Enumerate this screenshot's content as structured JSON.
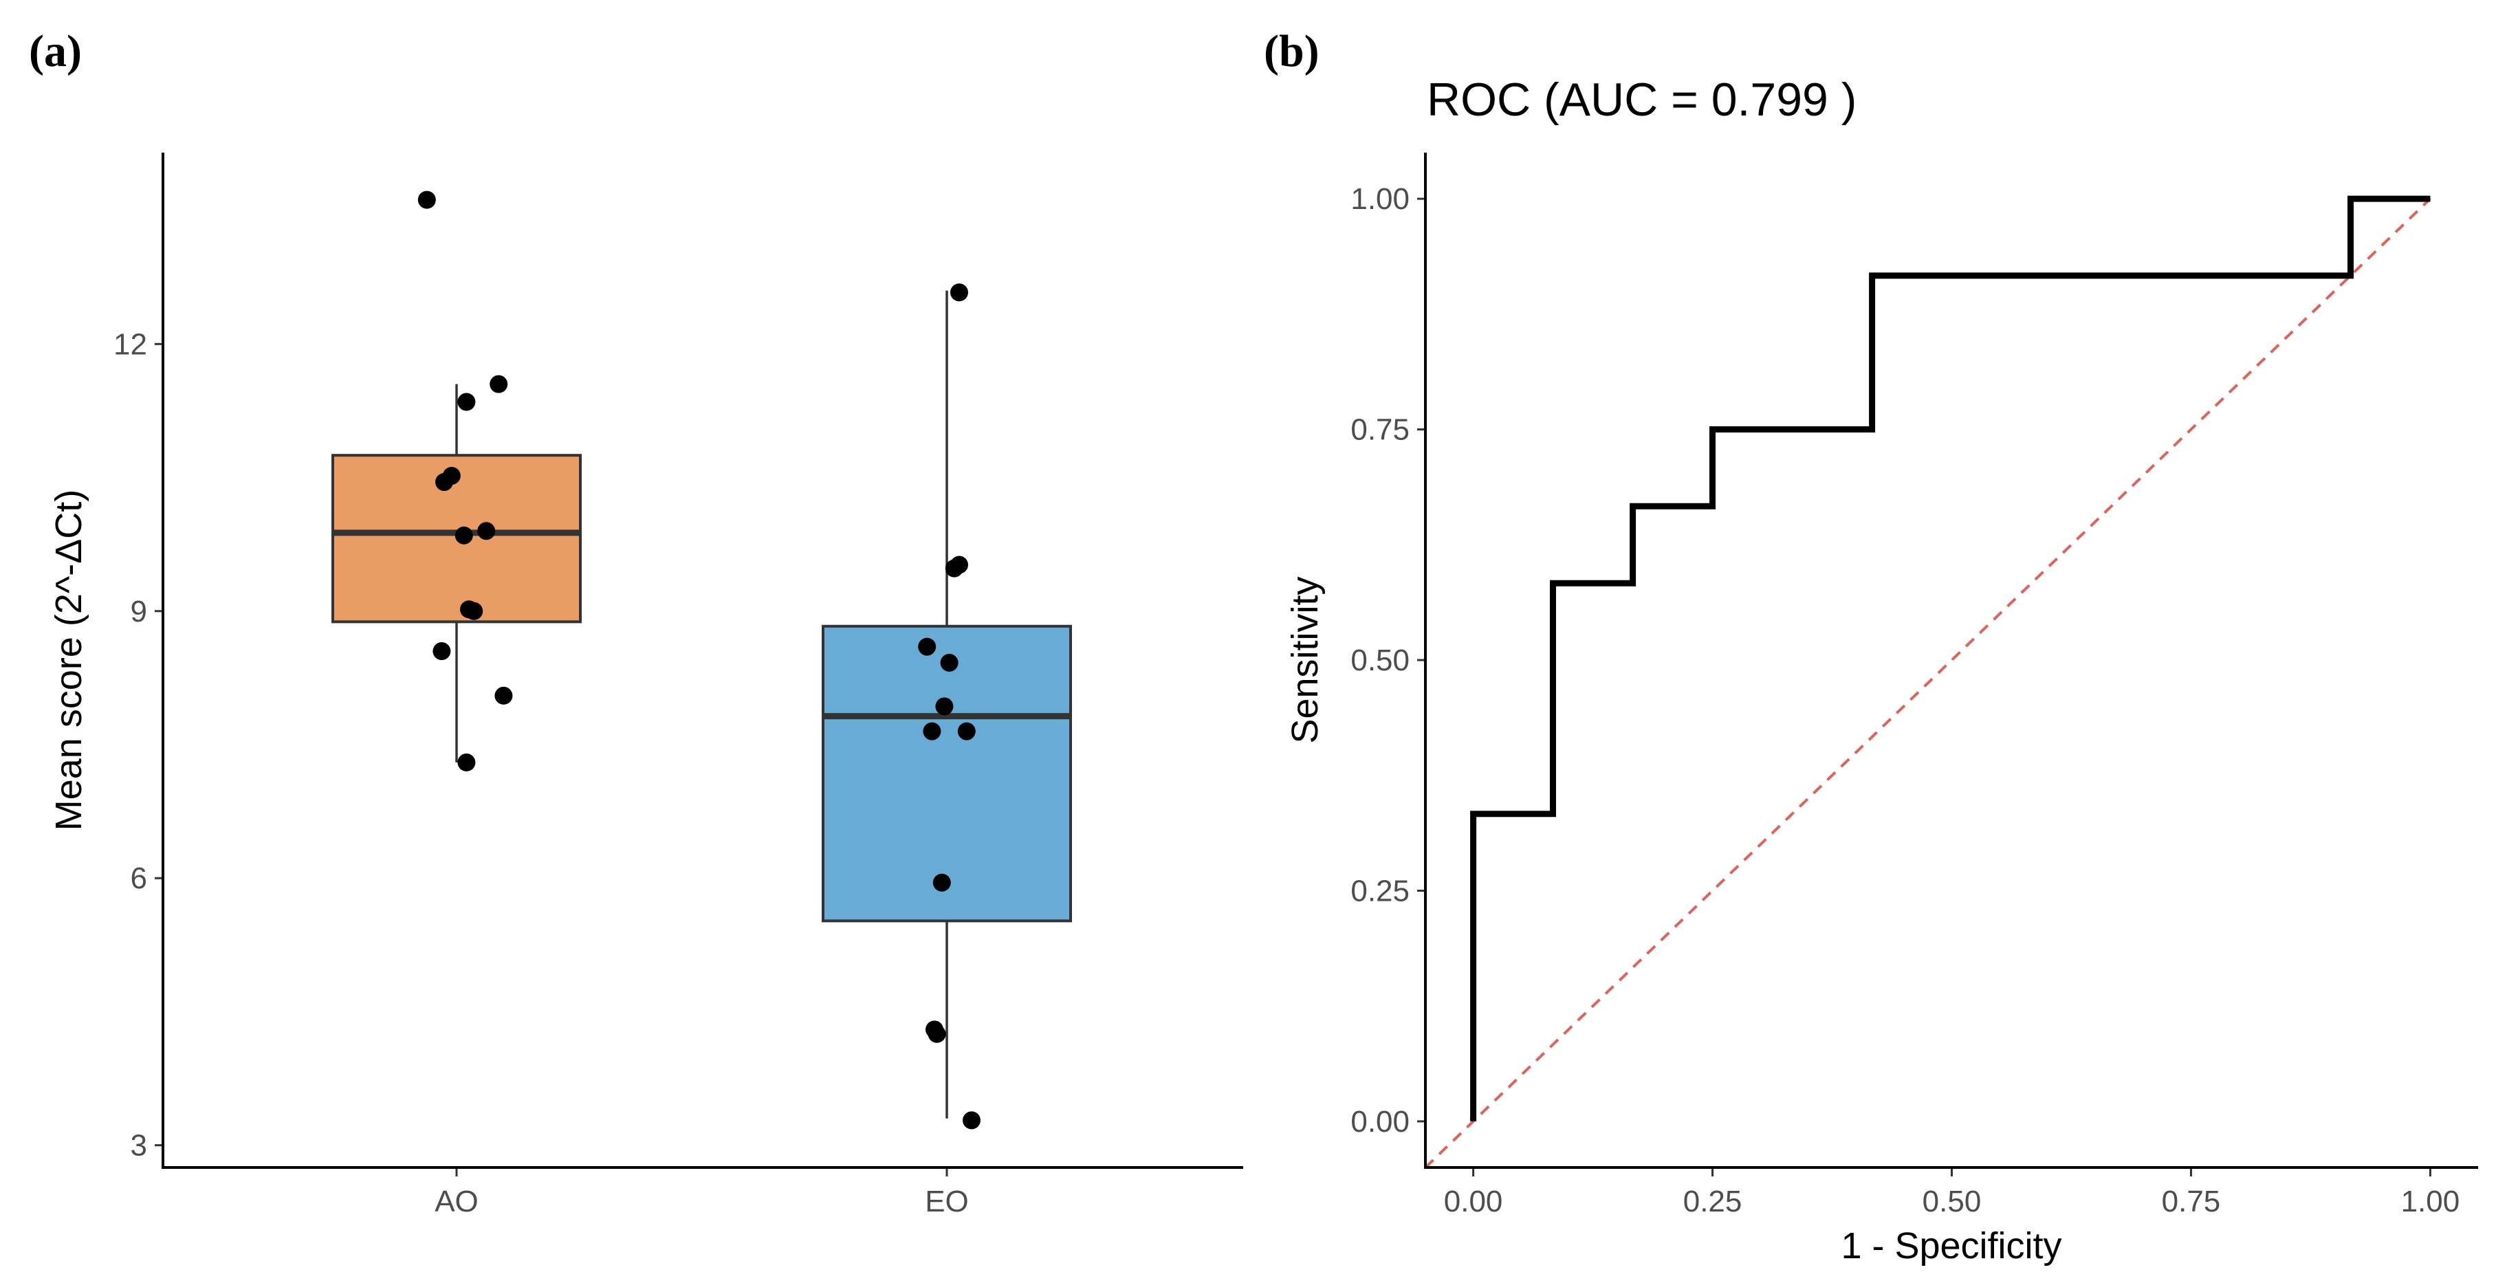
{
  "panels": {
    "a_label": "(a)",
    "b_label": "(b)"
  },
  "colors": {
    "ao_fill": "#E99D65",
    "eo_fill": "#68ABD4",
    "point": "#000000",
    "diagonal": "#D9655B",
    "roc": "#000000"
  },
  "chart_data": [
    {
      "type": "box",
      "title": "",
      "xlabel": "",
      "ylabel": "Mean score (2^-ΔCt)",
      "ylim": [
        2.75,
        14.15
      ],
      "yticks": [
        3,
        6,
        9,
        12
      ],
      "ytick_labels": [
        "3",
        "6",
        "9",
        "12"
      ],
      "categories": [
        "AO",
        "EO"
      ],
      "boxes": [
        {
          "name": "AO",
          "q1": 8.88,
          "median": 9.88,
          "q3": 10.75,
          "whisker_low": 7.3,
          "whisker_high": 11.55,
          "points": [
            [
              -0.12,
              13.62
            ],
            [
              0.17,
              11.55
            ],
            [
              0.04,
              11.35
            ],
            [
              -0.02,
              10.52
            ],
            [
              -0.05,
              10.45
            ],
            [
              0.12,
              9.9
            ],
            [
              0.03,
              9.85
            ],
            [
              0.07,
              9.0
            ],
            [
              0.05,
              9.02
            ],
            [
              -0.06,
              8.55
            ],
            [
              0.19,
              8.05
            ],
            [
              0.04,
              7.3
            ]
          ]
        },
        {
          "name": "EO",
          "q1": 5.52,
          "median": 7.82,
          "q3": 8.83,
          "whisker_low": 3.3,
          "whisker_high": 12.6,
          "points": [
            [
              0.05,
              12.58
            ],
            [
              0.05,
              9.52
            ],
            [
              0.03,
              9.48
            ],
            [
              -0.08,
              8.6
            ],
            [
              0.01,
              8.42
            ],
            [
              -0.01,
              7.93
            ],
            [
              0.08,
              7.65
            ],
            [
              -0.06,
              7.65
            ],
            [
              -0.02,
              5.95
            ],
            [
              -0.05,
              4.3
            ],
            [
              -0.04,
              4.25
            ],
            [
              0.1,
              3.28
            ]
          ]
        }
      ]
    },
    {
      "type": "line",
      "title": "ROC (AUC = 0.799 )",
      "xlabel": "1 - Specificity",
      "ylabel": "Sensitivity",
      "xlim": [
        -0.05,
        1.05
      ],
      "ylim": [
        -0.05,
        1.05
      ],
      "xticks": [
        0,
        0.25,
        0.5,
        0.75,
        1.0
      ],
      "xtick_labels": [
        "0.00",
        "0.25",
        "0.50",
        "0.75",
        "1.00"
      ],
      "yticks": [
        0,
        0.25,
        0.5,
        0.75,
        1.0
      ],
      "ytick_labels": [
        "0.00",
        "0.25",
        "0.50",
        "0.75",
        "1.00"
      ],
      "series": [
        {
          "name": "ROC",
          "x": [
            0,
            0,
            0.0833,
            0.0833,
            0.1667,
            0.1667,
            0.25,
            0.25,
            0.4167,
            0.4167,
            0.9167,
            0.9167,
            1.0
          ],
          "y": [
            0,
            0.3333,
            0.3333,
            0.5833,
            0.5833,
            0.6667,
            0.6667,
            0.75,
            0.75,
            0.9167,
            0.9167,
            1.0,
            1.0
          ]
        },
        {
          "name": "reference",
          "x": [
            -0.05,
            1.0
          ],
          "y": [
            -0.05,
            1.0
          ]
        }
      ]
    }
  ]
}
